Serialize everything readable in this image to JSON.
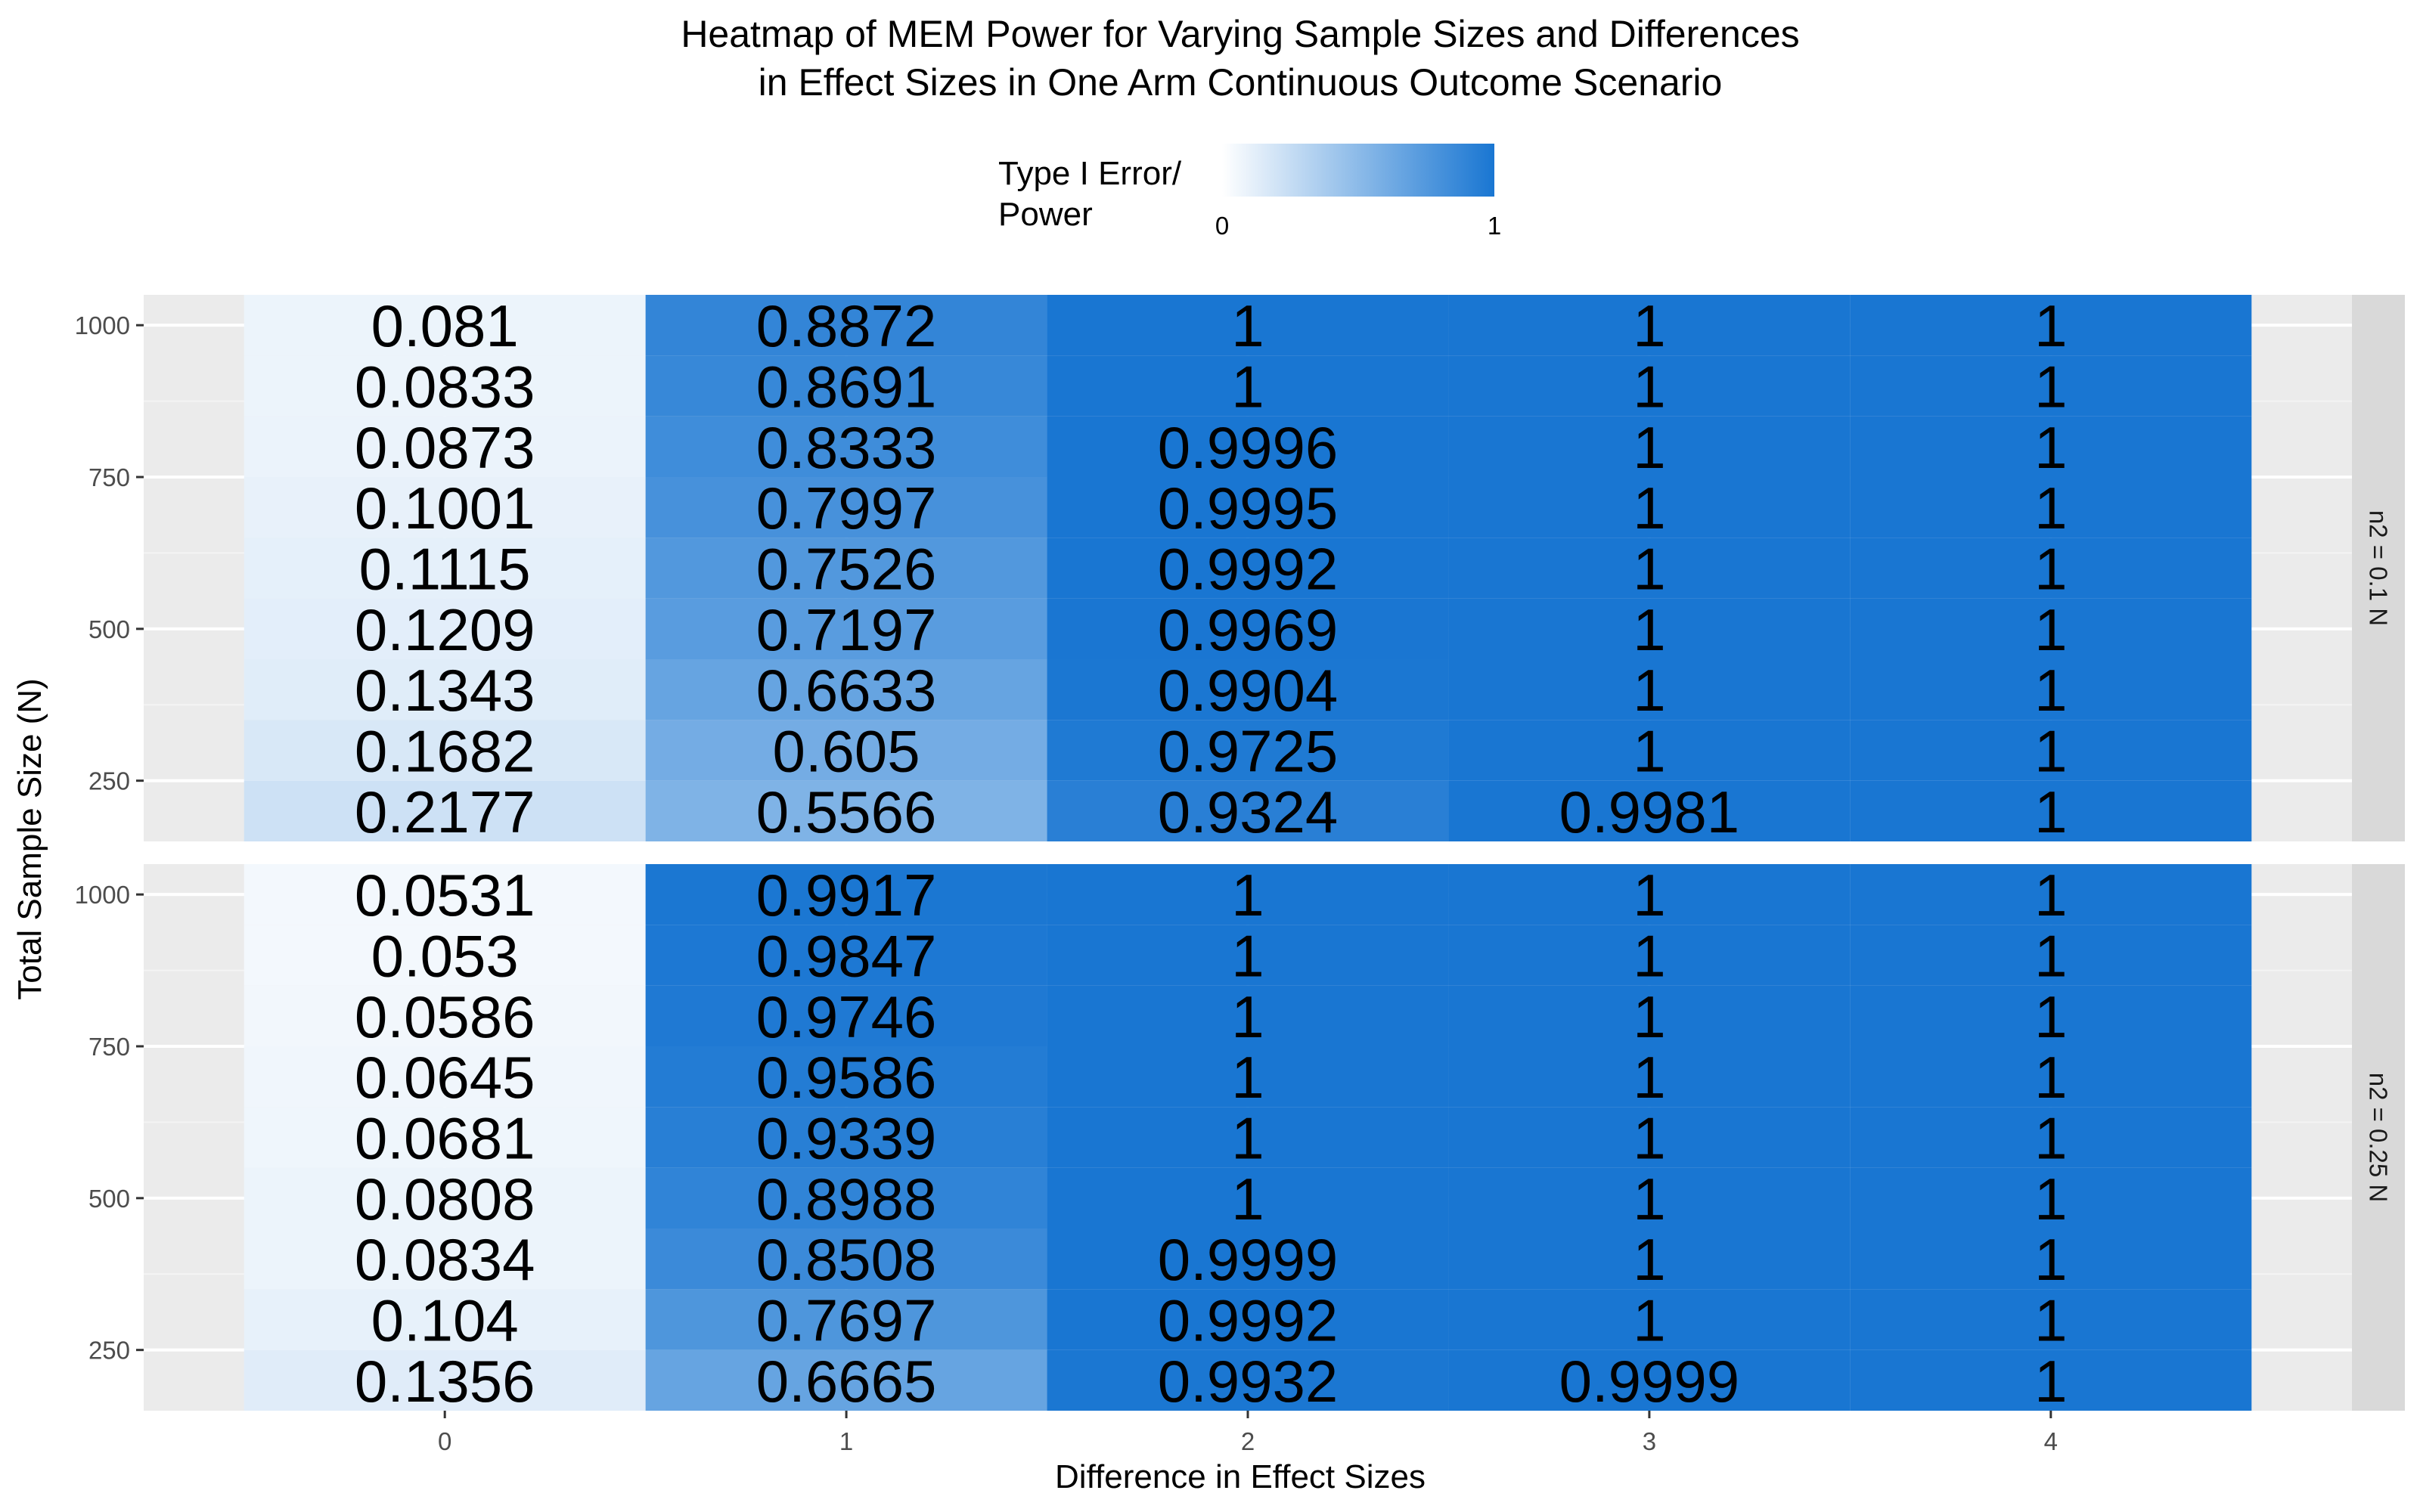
{
  "chart_data": {
    "type": "heatmap",
    "title": [
      "Heatmap of MEM Power for Varying Sample Sizes and Differences",
      "in Effect Sizes in One Arm Continuous Outcome Scenario"
    ],
    "xlabel": "Difference in Effect Sizes",
    "ylabel": "Total Sample Size (N)",
    "x_categories": [
      0,
      1,
      2,
      3,
      4
    ],
    "x_tick_labels": [
      "0",
      "1",
      "2",
      "3",
      "4"
    ],
    "y_values": [
      200,
      300,
      400,
      500,
      600,
      700,
      800,
      900,
      1000
    ],
    "y_ticks": [
      250,
      500,
      750,
      1000
    ],
    "y_tick_labels": [
      "250",
      "500",
      "750",
      "1000"
    ],
    "ylim": [
      150,
      1050
    ],
    "legend": {
      "title": [
        "Type I Error/",
        "Power"
      ],
      "min_label": "0",
      "max_label": "1",
      "low_color": "#ffffff",
      "high_color": "#1976d2",
      "position": "top"
    },
    "grid": true,
    "panel_background": "#ebebeb",
    "strip_background": "#d9d9d9",
    "facets": [
      {
        "label": "n2 = 0.1 N",
        "values": [
          [
            "0.2177",
            "0.5566",
            "0.9324",
            "0.9981",
            "1"
          ],
          [
            "0.1682",
            "0.605",
            "0.9725",
            "1",
            "1"
          ],
          [
            "0.1343",
            "0.6633",
            "0.9904",
            "1",
            "1"
          ],
          [
            "0.1209",
            "0.7197",
            "0.9969",
            "1",
            "1"
          ],
          [
            "0.1115",
            "0.7526",
            "0.9992",
            "1",
            "1"
          ],
          [
            "0.1001",
            "0.7997",
            "0.9995",
            "1",
            "1"
          ],
          [
            "0.0873",
            "0.8333",
            "0.9996",
            "1",
            "1"
          ],
          [
            "0.0833",
            "0.8691",
            "1",
            "1",
            "1"
          ],
          [
            "0.081",
            "0.8872",
            "1",
            "1",
            "1"
          ]
        ]
      },
      {
        "label": "n2 = 0.25 N",
        "values": [
          [
            "0.1356",
            "0.6665",
            "0.9932",
            "0.9999",
            "1"
          ],
          [
            "0.104",
            "0.7697",
            "0.9992",
            "1",
            "1"
          ],
          [
            "0.0834",
            "0.8508",
            "0.9999",
            "1",
            "1"
          ],
          [
            "0.0808",
            "0.8988",
            "1",
            "1",
            "1"
          ],
          [
            "0.0681",
            "0.9339",
            "1",
            "1",
            "1"
          ],
          [
            "0.0645",
            "0.9586",
            "1",
            "1",
            "1"
          ],
          [
            "0.0586",
            "0.9746",
            "1",
            "1",
            "1"
          ],
          [
            "0.053",
            "0.9847",
            "1",
            "1",
            "1"
          ],
          [
            "0.0531",
            "0.9917",
            "1",
            "1",
            "1"
          ]
        ]
      }
    ]
  }
}
